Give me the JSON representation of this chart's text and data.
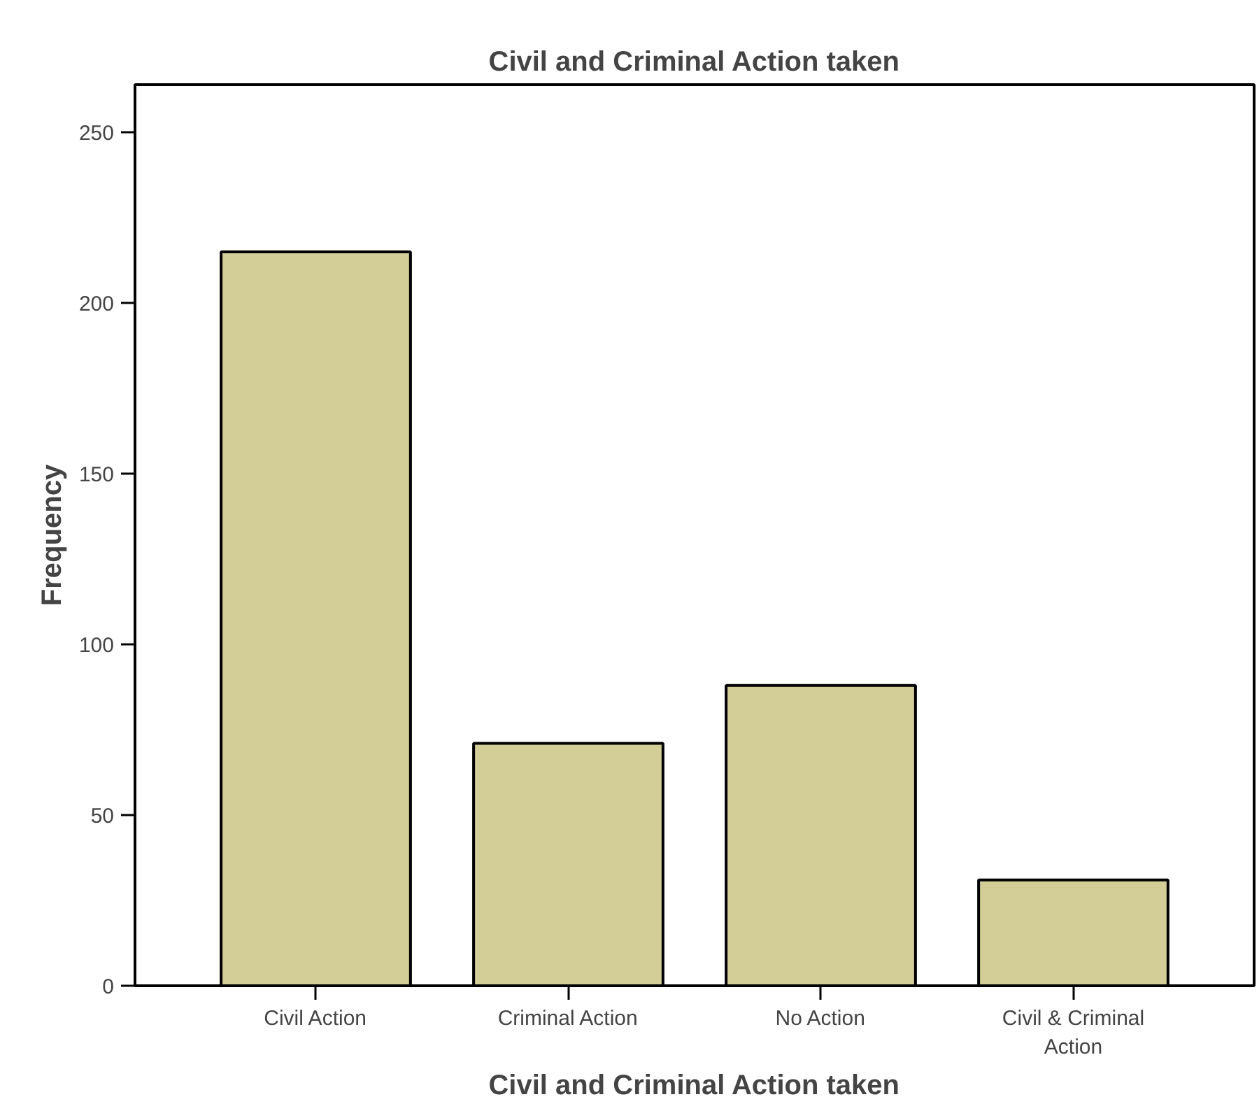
{
  "chart_data": {
    "type": "bar",
    "title": "Civil and Criminal Action taken",
    "xlabel": "Civil and Criminal Action taken",
    "ylabel": "Frequency",
    "categories": [
      "Civil Action",
      "Criminal Action",
      "No Action",
      "Civil & Criminal Action"
    ],
    "values": [
      215,
      71,
      88,
      31
    ],
    "color": "#d3cd98",
    "ylim": [
      0,
      264
    ],
    "yticks": [
      0,
      50,
      100,
      150,
      200,
      250
    ],
    "grid": false
  }
}
